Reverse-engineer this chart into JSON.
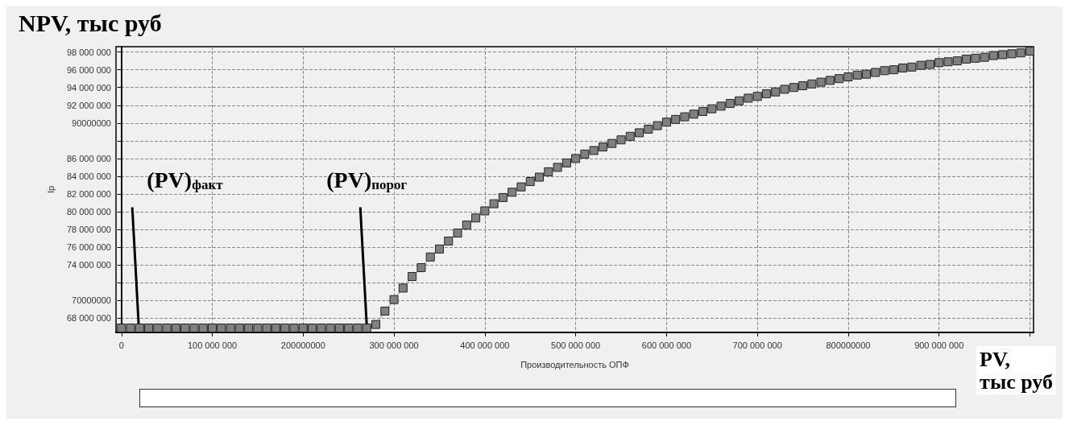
{
  "chart_data": {
    "type": "line",
    "title": "NPV, тыс руб",
    "xlabel": "Производительность ОПФ",
    "ylabel": "Ip",
    "x": [
      0,
      10000000,
      20000000,
      30000000,
      40000000,
      50000000,
      60000000,
      70000000,
      80000000,
      90000000,
      100000000,
      110000000,
      120000000,
      130000000,
      140000000,
      150000000,
      160000000,
      170000000,
      180000000,
      190000000,
      200000000,
      210000000,
      220000000,
      230000000,
      240000000,
      250000000,
      260000000,
      270000000,
      280000000,
      290000000,
      300000000,
      310000000,
      320000000,
      330000000,
      340000000,
      350000000,
      360000000,
      370000000,
      380000000,
      390000000,
      400000000,
      410000000,
      420000000,
      430000000,
      440000000,
      450000000,
      460000000,
      470000000,
      480000000,
      490000000,
      500000000,
      510000000,
      520000000,
      530000000,
      540000000,
      550000000,
      560000000,
      570000000,
      580000000,
      590000000,
      600000000,
      610000000,
      620000000,
      630000000,
      640000000,
      650000000,
      660000000,
      670000000,
      680000000,
      690000000,
      700000000,
      710000000,
      720000000,
      730000000,
      740000000,
      750000000,
      760000000,
      770000000,
      780000000,
      790000000,
      800000000,
      810000000,
      820000000,
      830000000,
      840000000,
      850000000,
      860000000,
      870000000,
      880000000,
      890000000,
      900000000,
      910000000,
      920000000,
      930000000,
      940000000,
      950000000,
      960000000,
      970000000,
      980000000,
      990000000,
      1000000000
    ],
    "series": [
      {
        "color": "#808080",
        "values": [
          66900000,
          66900000,
          66900000,
          66900000,
          66900000,
          66900000,
          66900000,
          66900000,
          66900000,
          66900000,
          66900000,
          66900000,
          66900000,
          66900000,
          66900000,
          66900000,
          66900000,
          66900000,
          66900000,
          66900000,
          66900000,
          66900000,
          66900000,
          66900000,
          66900000,
          66900000,
          66900000,
          66900000,
          67300000,
          68800000,
          70100000,
          71400000,
          72700000,
          73700000,
          74900000,
          75800000,
          76700000,
          77600000,
          78500000,
          79300000,
          80100000,
          80900000,
          81600000,
          82200000,
          82800000,
          83400000,
          83900000,
          84500000,
          85000000,
          85500000,
          86000000,
          86500000,
          86900000,
          87300000,
          87700000,
          88100000,
          88500000,
          88900000,
          89300000,
          89700000,
          90100000,
          90400000,
          90700000,
          91000000,
          91300000,
          91600000,
          91900000,
          92200000,
          92500000,
          92800000,
          93000000,
          93300000,
          93500000,
          93800000,
          94000000,
          94200000,
          94400000,
          94600000,
          94800000,
          95000000,
          95200000,
          95400000,
          95500000,
          95700000,
          95900000,
          96000000,
          96200000,
          96300000,
          96500000,
          96600000,
          96800000,
          96900000,
          97000000,
          97200000,
          97300000,
          97400000,
          97600000,
          97700000,
          97800000,
          97900000,
          98100000
        ]
      }
    ],
    "marker": "square",
    "line_style": "solid",
    "grid": true,
    "xlim": [
      -6000000,
      1004000000
    ],
    "xticks": [
      {
        "value": 0,
        "label": "0"
      },
      {
        "value": 100000000,
        "label": "100 000 000"
      },
      {
        "value": 200000000,
        "label": "200000000"
      },
      {
        "value": 300000000,
        "label": "300 000 000"
      },
      {
        "value": 400000000,
        "label": "400 000 000"
      },
      {
        "value": 500000000,
        "label": "500 000 000"
      },
      {
        "value": 600000000,
        "label": "600 000 000"
      },
      {
        "value": 700000000,
        "label": "700 000 000"
      },
      {
        "value": 800000000,
        "label": "800000000"
      },
      {
        "value": 900000000,
        "label": "900 000 000"
      },
      {
        "value": 1000000000,
        "label": null
      }
    ],
    "ylim": [
      66400000,
      98600000
    ],
    "yticks": [
      {
        "value": 68000000,
        "label": "68 000 000"
      },
      {
        "value": 70000000,
        "label": "70000000"
      },
      {
        "value": 72000000,
        "label": null
      },
      {
        "value": 74000000,
        "label": "74 000 000"
      },
      {
        "value": 76000000,
        "label": "76 000 000"
      },
      {
        "value": 78000000,
        "label": "78 000 000"
      },
      {
        "value": 80000000,
        "label": "80 000 000"
      },
      {
        "value": 82000000,
        "label": "82 000 000"
      },
      {
        "value": 84000000,
        "label": "84 000 000"
      },
      {
        "value": 86000000,
        "label": "86 000 000"
      },
      {
        "value": 88000000,
        "label": null
      },
      {
        "value": 90000000,
        "label": "90000000"
      },
      {
        "value": 92000000,
        "label": "92 000 000"
      },
      {
        "value": 94000000,
        "label": "94 000 000"
      },
      {
        "value": 96000000,
        "label": "96 000 000"
      },
      {
        "value": 98000000,
        "label": "98 000 000"
      }
    ],
    "annotations": [
      {
        "text": "(PV)$_{факт}$",
        "x": 19000000,
        "y": 66900000
      },
      {
        "text": "(PV)$_{порог}$",
        "x": 270000000,
        "y": 66900000
      },
      "PV,\nтыс руб"
    ]
  }
}
